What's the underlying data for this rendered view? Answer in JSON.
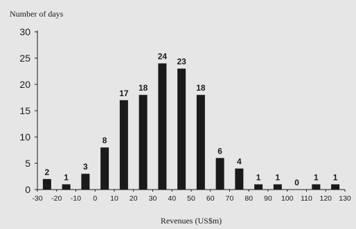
{
  "chart_data": {
    "type": "bar",
    "title": "",
    "ylabel": "Number of days",
    "xlabel": "Revenues (US$m)",
    "ylim": [
      0,
      30
    ],
    "yticks": [
      "0",
      "5",
      "10",
      "15",
      "20",
      "25",
      "30"
    ],
    "xticks": [
      "-30",
      "-20",
      "-10",
      "0",
      "10",
      "20",
      "30",
      "40",
      "50",
      "60",
      "70",
      "80",
      "90",
      "100",
      "110",
      "120",
      "130"
    ],
    "categories": [
      "-30 to -20",
      "-20 to -10",
      "-10 to 0",
      "0 to 10",
      "10 to 20",
      "20 to 30",
      "30 to 40",
      "40 to 50",
      "50 to 60",
      "60 to 70",
      "70 to 80",
      "80 to 90",
      "90 to 100",
      "100 to 110",
      "110 to 120",
      "120 to 130"
    ],
    "values": [
      2,
      1,
      3,
      8,
      17,
      18,
      24,
      23,
      18,
      6,
      4,
      1,
      1,
      0,
      1,
      1
    ],
    "data_labels": [
      "2",
      "1",
      "3",
      "8",
      "17",
      "18",
      "24",
      "23",
      "18",
      "6",
      "4",
      "1",
      "1",
      "0",
      "1",
      "1"
    ],
    "grid": false,
    "legend": "none",
    "colors": {
      "background": "#e6e6e6",
      "bar": "#1a1a1a",
      "axis": "#1a1a1a",
      "text": "#1a1a1a"
    }
  }
}
